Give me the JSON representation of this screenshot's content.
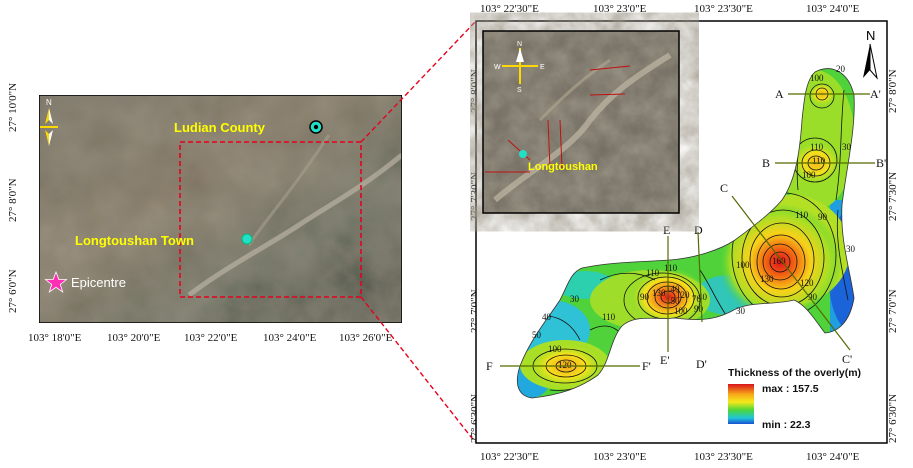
{
  "left_map": {
    "x_ticks": [
      "103° 18'0\"E",
      "103° 20'0\"E",
      "103° 22'0\"E",
      "103° 24'0\"E",
      "103° 26'0\"E"
    ],
    "y_ticks": [
      "27° 10'0\"N",
      "27° 8'0\"N",
      "27° 6'0\"N"
    ],
    "labels": {
      "ludian": "Ludian County",
      "longtoushan": "Longtoushan Town",
      "epicentre": "Epicentre"
    },
    "north": "N"
  },
  "right_map": {
    "top_x_ticks": [
      "103° 22'30\"E",
      "103° 23'0\"E",
      "103° 23'30\"E",
      "103° 24'0\"E"
    ],
    "bottom_x_ticks": [
      "103° 22'30\"E",
      "103° 23'0\"E",
      "103° 23'30\"E",
      "103° 24'0\"E"
    ],
    "left_y_ticks": [
      "27° 8'0\"N",
      "27° 7'30\"N",
      "27° 7'0\"N",
      "27° 6'30\"N"
    ],
    "right_y_ticks": [
      "27° 8'0\"N",
      "27° 7'30\"N",
      "27° 7'0\"N",
      "27° 6'30\"N"
    ],
    "north": "N",
    "inset": {
      "label": "Longtoushan",
      "compass": {
        "n": "N",
        "s": "S",
        "e": "E",
        "w": "W"
      }
    },
    "sections": [
      {
        "a": "A",
        "b": "A'"
      },
      {
        "a": "B",
        "b": "B'"
      },
      {
        "a": "C",
        "b": "C'"
      },
      {
        "a": "D",
        "b": "D'"
      },
      {
        "a": "E",
        "b": "E'"
      },
      {
        "a": "F",
        "b": "F'"
      }
    ],
    "contour_labels": [
      "100",
      "20",
      "110",
      "110",
      "30",
      "100",
      "90",
      "100",
      "110",
      "120",
      "90",
      "30",
      "110",
      "140",
      "120",
      "100",
      "90",
      "40",
      "30",
      "90",
      "110",
      "30",
      "40",
      "50",
      "100",
      "120",
      "130",
      "150",
      "160",
      "130",
      "110",
      "70"
    ],
    "legend": {
      "title": "Thickness of the overly(m)",
      "max": "max : 157.5",
      "min": "min : 22.3"
    }
  },
  "colors": {
    "frame": "#000000",
    "dashed": "#e8001c",
    "label_yellow": "#ffff00",
    "epicentre_star": "#ff2fb5",
    "marker_cyan": "#22e0c8"
  }
}
